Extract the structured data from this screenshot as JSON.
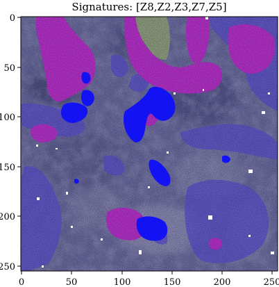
{
  "figure": {
    "title": "Signatures:  [Z8,Z2,Z3,Z7,Z5]",
    "x_ticks": [
      "0",
      "50",
      "100",
      "150",
      "200",
      "250"
    ],
    "y_ticks": [
      "0",
      "50",
      "100",
      "150",
      "200",
      "250"
    ],
    "xlim": [
      0,
      256
    ],
    "ylim": [
      256,
      0
    ],
    "colors": {
      "background_mid": "#66669a",
      "background_dark": "#3f3f6f",
      "background_light": "#8c8cb6",
      "magenta_region": "#b02fc4",
      "blue_region": "#1212f2",
      "violet_region": "#5a50c8",
      "green_region": "#8fa07a",
      "white_speck": "#ffffff"
    }
  }
}
